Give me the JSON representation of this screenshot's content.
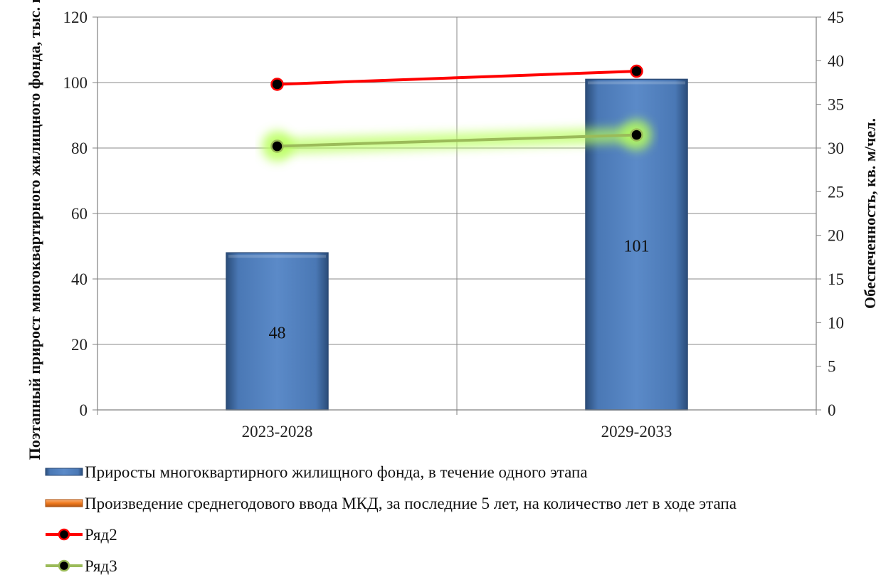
{
  "chart_data": {
    "type": "bar",
    "categories": [
      "2023-2028",
      "2029-2033"
    ],
    "ylabel_left": "Поэтапный прирост многоквартирного жилищного фонда, тыс. кв. м",
    "ylabel_right": "Обеспеченность, кв. м/чел.",
    "ylim_left": [
      0,
      120
    ],
    "yticks_left": [
      0,
      20,
      40,
      60,
      80,
      100,
      120
    ],
    "ylim_right": [
      0,
      45
    ],
    "yticks_right": [
      0,
      5,
      10,
      15,
      20,
      25,
      30,
      35,
      40,
      45
    ],
    "grid": true,
    "legend_position": "bottom",
    "series": [
      {
        "name": "Приросты многоквартирного жилищного фонда, в течение одного этапа",
        "kind": "bar",
        "axis": "left",
        "values": [
          48,
          101
        ],
        "data_labels": [
          "48",
          "101"
        ],
        "color": "#4f81bd"
      },
      {
        "name": "Произведение среднегодового ввода МКД, за последние 5 лет, на количество лет в ходе этапа",
        "kind": "bar",
        "axis": "left",
        "values": [
          null,
          null
        ],
        "color": "#f79646"
      },
      {
        "name": "Ряд2",
        "kind": "line",
        "axis": "right",
        "values": [
          37.3,
          38.8
        ],
        "color": "#ff0000"
      },
      {
        "name": "Ряд3",
        "kind": "line",
        "axis": "right",
        "values": [
          30.2,
          31.5
        ],
        "color": "#9bbb59"
      }
    ]
  }
}
